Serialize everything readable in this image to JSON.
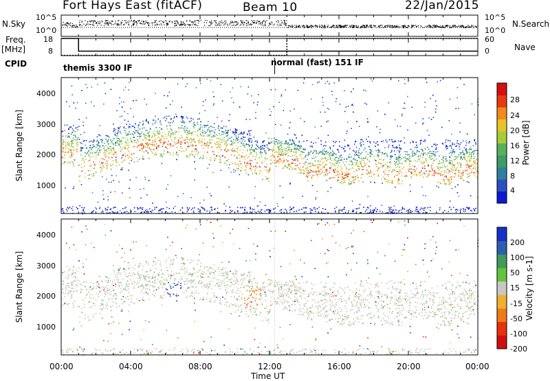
{
  "header": {
    "station": "Fort Hays East (fitACF)",
    "beam": "Beam 10",
    "date": "22/Jan/2015"
  },
  "left_labels": {
    "nsky": "N.Sky",
    "freq_line1": "Freq.",
    "freq_line2": "[MHz]",
    "cpid": "CPID"
  },
  "right_labels": {
    "nsearch": "N.Search",
    "nave": "Nave"
  },
  "cpid_segments": [
    "themis 3300 IF",
    "normal (fast) 151 IF"
  ],
  "chart_data": [
    {
      "type": "line",
      "name": "N.Sky / N.Search",
      "yticks": [
        "10^5",
        "10^0"
      ],
      "right_yticks": [
        "10^5",
        "10^0"
      ]
    },
    {
      "type": "line",
      "name": "Freq / Nave",
      "yticks": [
        "18",
        "8"
      ],
      "right_yticks": [
        "60",
        "0"
      ],
      "freq_series": {
        "x": [
          "00:00",
          "01:00",
          "01:00",
          "13:00",
          "13:00",
          "24:00"
        ],
        "y": [
          18,
          18,
          10.6,
          10.6,
          10.6,
          10.6
        ]
      },
      "nave_series": {
        "x": [
          "00:00",
          "01:00",
          "01:00",
          "13:00",
          "13:00",
          "24:00"
        ],
        "y": [
          1,
          1,
          1,
          1,
          60,
          60
        ]
      }
    },
    {
      "type": "heatmap",
      "ylabel": "Slant Range [km]",
      "yticks": [
        "1000",
        "2000",
        "3000",
        "4000"
      ],
      "colorbar_label": "Power [dB]",
      "colorbar_ticks": [
        "28",
        "24",
        "20",
        "16",
        "12",
        "8",
        "4"
      ],
      "colors": [
        "#0a1bd6",
        "#2c4fc0",
        "#2f7fa0",
        "#3f9a68",
        "#59b05a",
        "#a7cc3a",
        "#e8c32a",
        "#f28a1e",
        "#e83a12",
        "#d41010"
      ]
    },
    {
      "type": "heatmap",
      "ylabel": "Slant Range [km]",
      "yticks": [
        "1000",
        "2000",
        "3000",
        "4000"
      ],
      "colorbar_label": "Velocity [m s-1]",
      "colorbar_ticks": [
        "200",
        "100",
        "50",
        "15",
        "-15",
        "-50",
        "-100",
        "-200"
      ],
      "colors": [
        "#1530c8",
        "#2d5fb0",
        "#3f9a5c",
        "#63c43c",
        "#c8c8c0",
        "#f0b030",
        "#ee7a18",
        "#e83010",
        "#d01010"
      ]
    }
  ],
  "xaxis": {
    "label": "Time UT",
    "ticks": [
      "00:00",
      "04:00",
      "08:00",
      "12:00",
      "16:00",
      "20:00",
      "00:00"
    ]
  }
}
